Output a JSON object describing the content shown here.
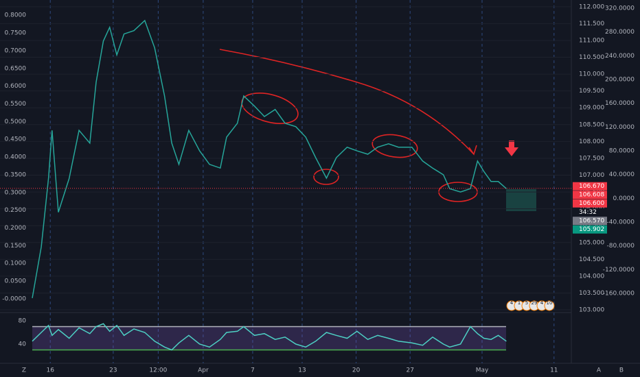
{
  "chart_data": [
    {
      "type": "line",
      "x": [
        -2,
        -1,
        -0.2,
        0.2,
        0.9,
        2.1,
        3.2,
        4.4,
        5.1,
        5.9,
        6.6,
        7.4,
        8.2,
        9.3,
        10.5,
        11.6,
        12.7,
        13.5,
        14.3,
        15.4,
        16.6,
        17.7,
        18.9,
        19.6,
        20.8,
        21.5,
        22.7,
        23.8,
        25,
        26.1,
        27.3,
        28.4,
        29.5,
        30.7,
        31.8,
        33,
        34.1,
        35.3,
        36.4,
        37.6,
        38.7,
        40.2,
        41.4,
        42.5,
        43.7,
        44.4,
        45.6,
        46.7,
        47.5,
        48.2,
        49,
        49.8,
        50.7
      ],
      "series": [
        {
          "color": "#26a69a",
          "values": [
            103.35,
            104.87,
            106.9,
            108.33,
            105.9,
            106.9,
            108.33,
            107.95,
            109.76,
            110.98,
            111.39,
            110.57,
            111.19,
            111.29,
            111.59,
            110.78,
            109.35,
            107.95,
            107.32,
            108.33,
            107.72,
            107.32,
            107.21,
            108.13,
            108.54,
            109.35,
            109.05,
            108.74,
            108.95,
            108.54,
            108.44,
            108.13,
            107.52,
            106.91,
            107.52,
            107.83,
            107.72,
            107.62,
            107.83,
            107.93,
            107.83,
            107.83,
            107.42,
            107.21,
            107.01,
            106.6,
            106.5,
            106.6,
            107.42,
            107.11,
            106.81,
            106.81,
            106.6
          ]
        }
      ],
      "xlim": [
        -2,
        58
      ],
      "xticks": [
        {
          "value": 0,
          "label": "16"
        },
        {
          "value": 7,
          "label": "23"
        },
        {
          "value": 12,
          "label": "12:00"
        },
        {
          "value": 17,
          "label": "Apr"
        },
        {
          "value": 22.5,
          "label": "7"
        },
        {
          "value": 28,
          "label": "13"
        },
        {
          "value": 34,
          "label": "20"
        },
        {
          "value": 40,
          "label": "27"
        },
        {
          "value": 48,
          "label": "May"
        },
        {
          "value": 56,
          "label": "11"
        }
      ],
      "ylim": [
        102.94,
        112.2
      ],
      "yticks": [
        {
          "value": 103,
          "label": "103.000"
        },
        {
          "value": 103.5,
          "label": "103.500"
        },
        {
          "value": 104,
          "label": "104.000"
        },
        {
          "value": 104.5,
          "label": "104.500"
        },
        {
          "value": 105,
          "label": "105.000"
        },
        {
          "value": 105.5,
          "label": "105.500"
        },
        {
          "value": 106,
          "label": "106.000"
        },
        {
          "value": 106.5,
          "label": "106.500"
        },
        {
          "value": 107,
          "label": "107.000"
        },
        {
          "value": 107.5,
          "label": "107.500"
        },
        {
          "value": 108,
          "label": "108.000"
        },
        {
          "value": 108.5,
          "label": "108.500"
        },
        {
          "value": 109,
          "label": "109.000"
        },
        {
          "value": 109.5,
          "label": "109.500"
        },
        {
          "value": 110,
          "label": "110.000"
        },
        {
          "value": 110.5,
          "label": "110.500"
        },
        {
          "value": 111,
          "label": "111.000"
        },
        {
          "value": 111.5,
          "label": "111.500"
        },
        {
          "value": 112,
          "label": "112.000"
        }
      ],
      "y2lim": [
        -0.037,
        0.843
      ],
      "y2ticks": [
        {
          "value": 0,
          "label": "-0.0000"
        },
        {
          "value": 0.05,
          "label": "0.0500"
        },
        {
          "value": 0.1,
          "label": "0.1000"
        },
        {
          "value": 0.15,
          "label": "0.1500"
        },
        {
          "value": 0.2,
          "label": "0.2000"
        },
        {
          "value": 0.25,
          "label": "0.2500"
        },
        {
          "value": 0.3,
          "label": "0.3000"
        },
        {
          "value": 0.35,
          "label": "0.3500"
        },
        {
          "value": 0.4,
          "label": "0.4000"
        },
        {
          "value": 0.45,
          "label": "0.4500"
        },
        {
          "value": 0.5,
          "label": "0.5000"
        },
        {
          "value": 0.55,
          "label": "0.5500"
        },
        {
          "value": 0.6,
          "label": "0.6000"
        },
        {
          "value": 0.65,
          "label": "0.6500"
        },
        {
          "value": 0.7,
          "label": "0.7000"
        },
        {
          "value": 0.75,
          "label": "0.7500"
        },
        {
          "value": 0.8,
          "label": "0.8000"
        }
      ],
      "y3lim": [
        -191.2,
        333.8
      ],
      "y3ticks": [
        {
          "value": -160,
          "label": "-160.0000"
        },
        {
          "value": -120,
          "label": "-120.0000"
        },
        {
          "value": -80,
          "label": "-80.0000"
        },
        {
          "value": -40,
          "label": "-40.0000"
        },
        {
          "value": 0,
          "label": "0.0000"
        },
        {
          "value": 40,
          "label": "40.0000"
        },
        {
          "value": 80,
          "label": "80.0000"
        },
        {
          "value": 120,
          "label": "120.0000"
        },
        {
          "value": 160,
          "label": "160.0000"
        },
        {
          "value": 200,
          "label": "200.0000"
        },
        {
          "value": 240,
          "label": "240.0000"
        },
        {
          "value": 280,
          "label": "280.0000"
        },
        {
          "value": 320,
          "label": "320.0000"
        }
      ],
      "price_tags": [
        {
          "value": 106.67,
          "label": "106.670",
          "color": "#f23645"
        },
        {
          "value": 106.608,
          "label": "106.608",
          "color": "#f23645"
        },
        {
          "value": 106.6,
          "label": "106.600",
          "color": "#f23645"
        },
        {
          "label": "34:32",
          "color": "#131722"
        },
        {
          "value": 106.57,
          "label": "106.570",
          "color": "#787b86"
        },
        {
          "value": 105.902,
          "label": "105.902",
          "color": "#089981"
        }
      ],
      "event_badges": [
        "4",
        "1",
        "5",
        "29",
        "4",
        "10"
      ],
      "grid": true
    },
    {
      "type": "line",
      "x": [
        -2,
        -1,
        -0.2,
        0.2,
        0.9,
        2.1,
        3.2,
        4.4,
        5.1,
        5.9,
        6.6,
        7.4,
        8.2,
        9.3,
        10.5,
        11.6,
        12.7,
        13.5,
        14.3,
        15.4,
        16.6,
        17.7,
        18.9,
        19.6,
        20.8,
        21.5,
        22.7,
        23.8,
        25,
        26.1,
        27.3,
        28.4,
        29.5,
        30.7,
        31.8,
        33,
        34.1,
        35.3,
        36.4,
        37.6,
        38.7,
        40.2,
        41.4,
        42.5,
        43.7,
        44.4,
        45.6,
        46.7,
        47.5,
        48.2,
        49,
        49.8,
        50.7
      ],
      "series": [
        {
          "color": "#4dd0c4",
          "values": [
            45,
            60,
            72,
            55,
            65,
            50,
            68,
            58,
            70,
            75,
            62,
            72,
            55,
            66,
            60,
            45,
            35,
            30,
            42,
            55,
            40,
            35,
            48,
            60,
            62,
            70,
            55,
            58,
            48,
            52,
            40,
            35,
            45,
            60,
            55,
            50,
            62,
            48,
            55,
            50,
            45,
            42,
            38,
            52,
            40,
            35,
            40,
            70,
            58,
            50,
            48,
            55,
            45
          ]
        }
      ],
      "xlim": [
        -2,
        58
      ],
      "ylim": [
        9.4,
        91.8
      ],
      "yticks": [
        40,
        80
      ],
      "bands": [
        30,
        70
      ]
    }
  ],
  "toolbar": {
    "left": "Z",
    "right": [
      "A",
      "B"
    ]
  }
}
